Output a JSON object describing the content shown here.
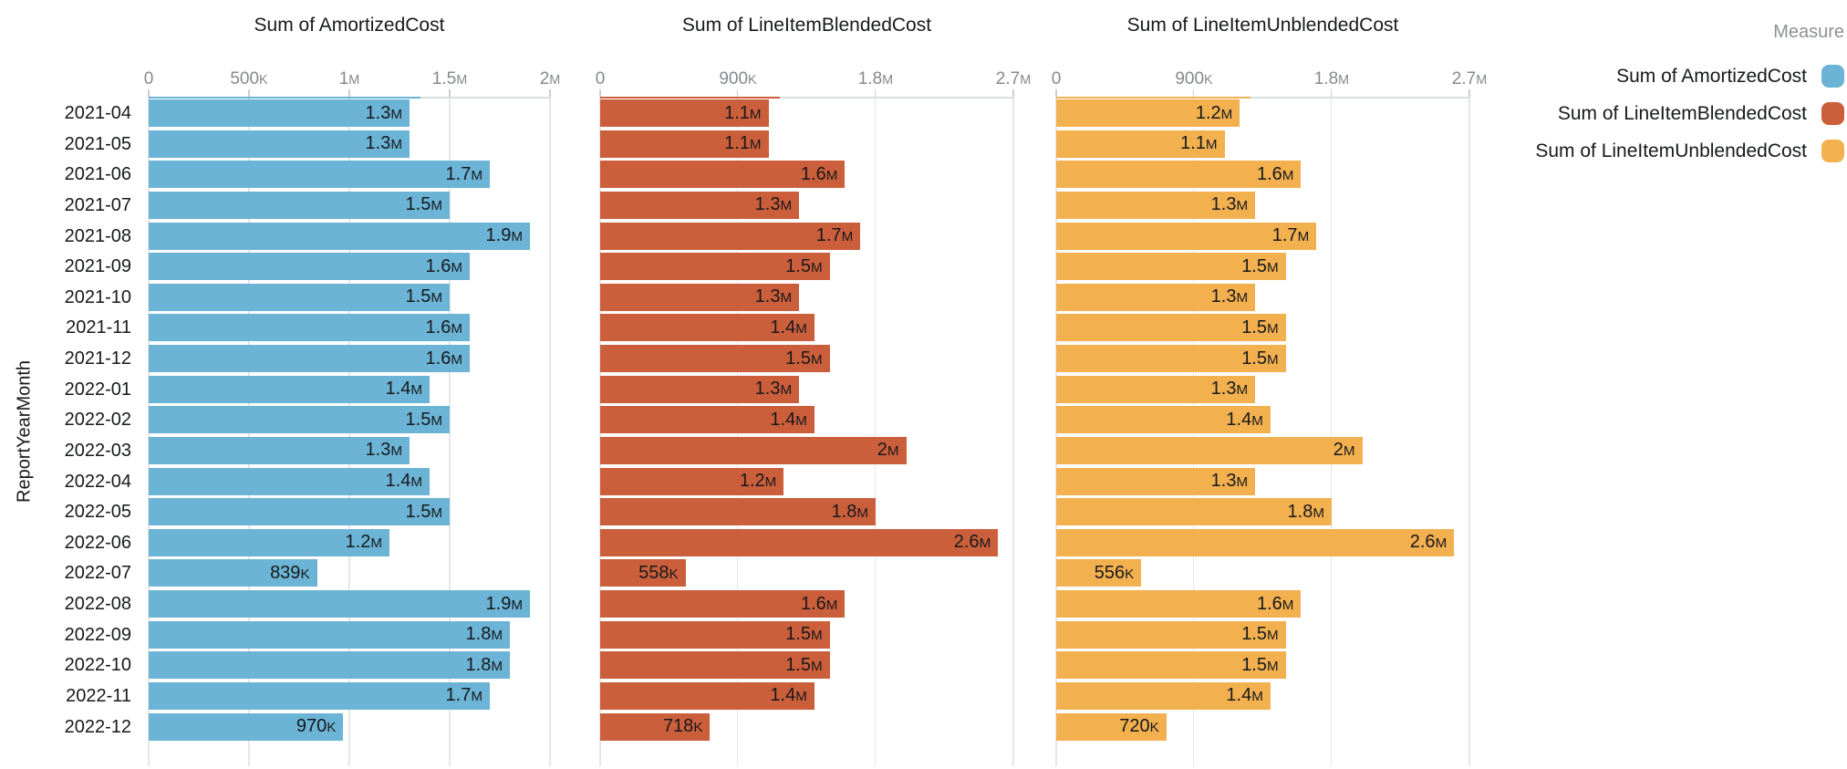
{
  "y_axis_title": "ReportYearMonth",
  "legend": {
    "title": "Measure",
    "items": [
      {
        "label": "Sum of AmortizedCost",
        "color": "#6CB4D6"
      },
      {
        "label": "Sum of LineItemBlendedCost",
        "color": "#CC5F3B"
      },
      {
        "label": "Sum of LineItemUnblendedCost",
        "color": "#F3B04F"
      }
    ]
  },
  "chart_data": {
    "type": "bar",
    "orientation": "horizontal",
    "grid": true,
    "legend_position": "top-right",
    "ylabel": "ReportYearMonth",
    "categories": [
      "2021-04",
      "2021-05",
      "2021-06",
      "2021-07",
      "2021-08",
      "2021-09",
      "2021-10",
      "2021-11",
      "2021-12",
      "2022-01",
      "2022-02",
      "2022-03",
      "2022-04",
      "2022-05",
      "2022-06",
      "2022-07",
      "2022-08",
      "2022-09",
      "2022-10",
      "2022-11",
      "2022-12"
    ],
    "panels": [
      {
        "title": "Sum of AmortizedCost",
        "color": "#6CB4D6",
        "axis_max": 2000000,
        "tick_values": [
          0,
          500000,
          1000000,
          1500000,
          2000000
        ],
        "tick_labels": [
          "0",
          "500K",
          "1M",
          "1.5M",
          "2M"
        ],
        "values": [
          1300000,
          1300000,
          1700000,
          1500000,
          1900000,
          1600000,
          1500000,
          1600000,
          1600000,
          1400000,
          1500000,
          1300000,
          1400000,
          1500000,
          1200000,
          839000,
          1900000,
          1800000,
          1800000,
          1700000,
          970000
        ],
        "labels": [
          "1.3M",
          "1.3M",
          "1.7M",
          "1.5M",
          "1.9M",
          "1.6M",
          "1.5M",
          "1.6M",
          "1.6M",
          "1.4M",
          "1.5M",
          "1.3M",
          "1.4M",
          "1.5M",
          "1.2M",
          "839K",
          "1.9M",
          "1.8M",
          "1.8M",
          "1.7M",
          "970K"
        ]
      },
      {
        "title": "Sum of LineItemBlendedCost",
        "color": "#CC5F3B",
        "axis_max": 2700000,
        "tick_values": [
          0,
          900000,
          1800000,
          2700000
        ],
        "tick_labels": [
          "0",
          "900K",
          "1.8M",
          "2.7M"
        ],
        "values": [
          1100000,
          1100000,
          1600000,
          1300000,
          1700000,
          1500000,
          1300000,
          1400000,
          1500000,
          1300000,
          1400000,
          2000000,
          1200000,
          1800000,
          2600000,
          558000,
          1600000,
          1500000,
          1500000,
          1400000,
          718000
        ],
        "labels": [
          "1.1M",
          "1.1M",
          "1.6M",
          "1.3M",
          "1.7M",
          "1.5M",
          "1.3M",
          "1.4M",
          "1.5M",
          "1.3M",
          "1.4M",
          "2M",
          "1.2M",
          "1.8M",
          "2.6M",
          "558K",
          "1.6M",
          "1.5M",
          "1.5M",
          "1.4M",
          "718K"
        ]
      },
      {
        "title": "Sum of LineItemUnblendedCost",
        "color": "#F3B04F",
        "axis_max": 2700000,
        "tick_values": [
          0,
          900000,
          1800000,
          2700000
        ],
        "tick_labels": [
          "0",
          "900K",
          "1.8M",
          "2.7M"
        ],
        "values": [
          1200000,
          1100000,
          1600000,
          1300000,
          1700000,
          1500000,
          1300000,
          1500000,
          1500000,
          1300000,
          1400000,
          2000000,
          1300000,
          1800000,
          2600000,
          556000,
          1600000,
          1500000,
          1500000,
          1400000,
          720000
        ],
        "labels": [
          "1.2M",
          "1.1M",
          "1.6M",
          "1.3M",
          "1.7M",
          "1.5M",
          "1.3M",
          "1.5M",
          "1.5M",
          "1.3M",
          "1.4M",
          "2M",
          "1.3M",
          "1.8M",
          "2.6M",
          "556K",
          "1.6M",
          "1.5M",
          "1.5M",
          "1.4M",
          "720K"
        ]
      }
    ]
  }
}
